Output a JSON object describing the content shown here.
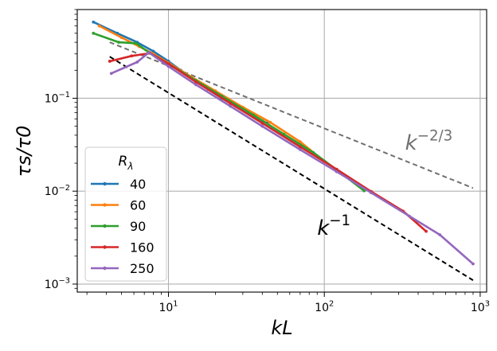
{
  "chart_data": {
    "type": "line",
    "xscale": "log",
    "yscale": "log",
    "xlim": [
      2.6,
      1100
    ],
    "ylim": [
      0.00082,
      0.9
    ],
    "xlabel": "kL",
    "ylabel": "τs/τ0",
    "grid": true,
    "x_ticks": [
      {
        "value": 10,
        "base": "10",
        "exp": "1"
      },
      {
        "value": 100,
        "base": "10",
        "exp": "2"
      },
      {
        "value": 1000,
        "base": "10",
        "exp": "3"
      }
    ],
    "y_ticks": [
      {
        "value": 0.001,
        "base": "10",
        "exp": "−3"
      },
      {
        "value": 0.01,
        "base": "10",
        "exp": "−2"
      },
      {
        "value": 0.1,
        "base": "10",
        "exp": "−1"
      }
    ],
    "legend": {
      "title": "Rλ",
      "placement": "lower-left"
    },
    "series": [
      {
        "name": "40",
        "color": "#1f77b4",
        "x": [
          3.3,
          4.7,
          6.3,
          8,
          10,
          12,
          15,
          18,
          22,
          27,
          33,
          40,
          43
        ],
        "y": [
          0.66,
          0.5,
          0.4,
          0.32,
          0.25,
          0.2,
          0.155,
          0.125,
          0.1,
          0.082,
          0.068,
          0.057,
          0.054
        ]
      },
      {
        "name": "60",
        "color": "#ff7f0e",
        "x": [
          3.6,
          5,
          6.5,
          8,
          10,
          14,
          20,
          30,
          45,
          70,
          100
        ],
        "y": [
          0.6,
          0.45,
          0.36,
          0.3,
          0.24,
          0.17,
          0.12,
          0.08,
          0.055,
          0.034,
          0.021
        ]
      },
      {
        "name": "90",
        "color": "#2ca02c",
        "x": [
          3.3,
          4.8,
          6.2,
          7.5,
          10,
          15,
          22,
          35,
          55,
          85,
          120,
          180
        ],
        "y": [
          0.5,
          0.4,
          0.39,
          0.31,
          0.235,
          0.155,
          0.105,
          0.066,
          0.041,
          0.026,
          0.017,
          0.0101
        ]
      },
      {
        "name": "160",
        "color": "#d62728",
        "x": [
          4.2,
          5.8,
          7.6,
          10,
          15,
          25,
          40,
          70,
          120,
          200,
          320,
          450
        ],
        "y": [
          0.25,
          0.285,
          0.305,
          0.235,
          0.15,
          0.088,
          0.054,
          0.03,
          0.0172,
          0.0099,
          0.0061,
          0.0037
        ]
      },
      {
        "name": "250",
        "color": "#9467bd",
        "x": [
          4.3,
          6.3,
          7.5,
          10,
          15,
          25,
          40,
          70,
          120,
          200,
          350,
          550,
          900
        ],
        "y": [
          0.185,
          0.245,
          0.31,
          0.22,
          0.14,
          0.082,
          0.05,
          0.028,
          0.0162,
          0.0096,
          0.0054,
          0.0034,
          0.00165
        ]
      }
    ],
    "reference_lines": [
      {
        "label_base": "k",
        "label_exp": "−1",
        "color": "#000000",
        "style": "dashed",
        "x": [
          4.2,
          900
        ],
        "y": [
          0.28,
          0.0011
        ]
      },
      {
        "label_base": "k",
        "label_exp": "−2/3",
        "color": "#707070",
        "style": "dashed",
        "x": [
          4.2,
          900
        ],
        "y": [
          0.4,
          0.0108
        ]
      }
    ]
  }
}
